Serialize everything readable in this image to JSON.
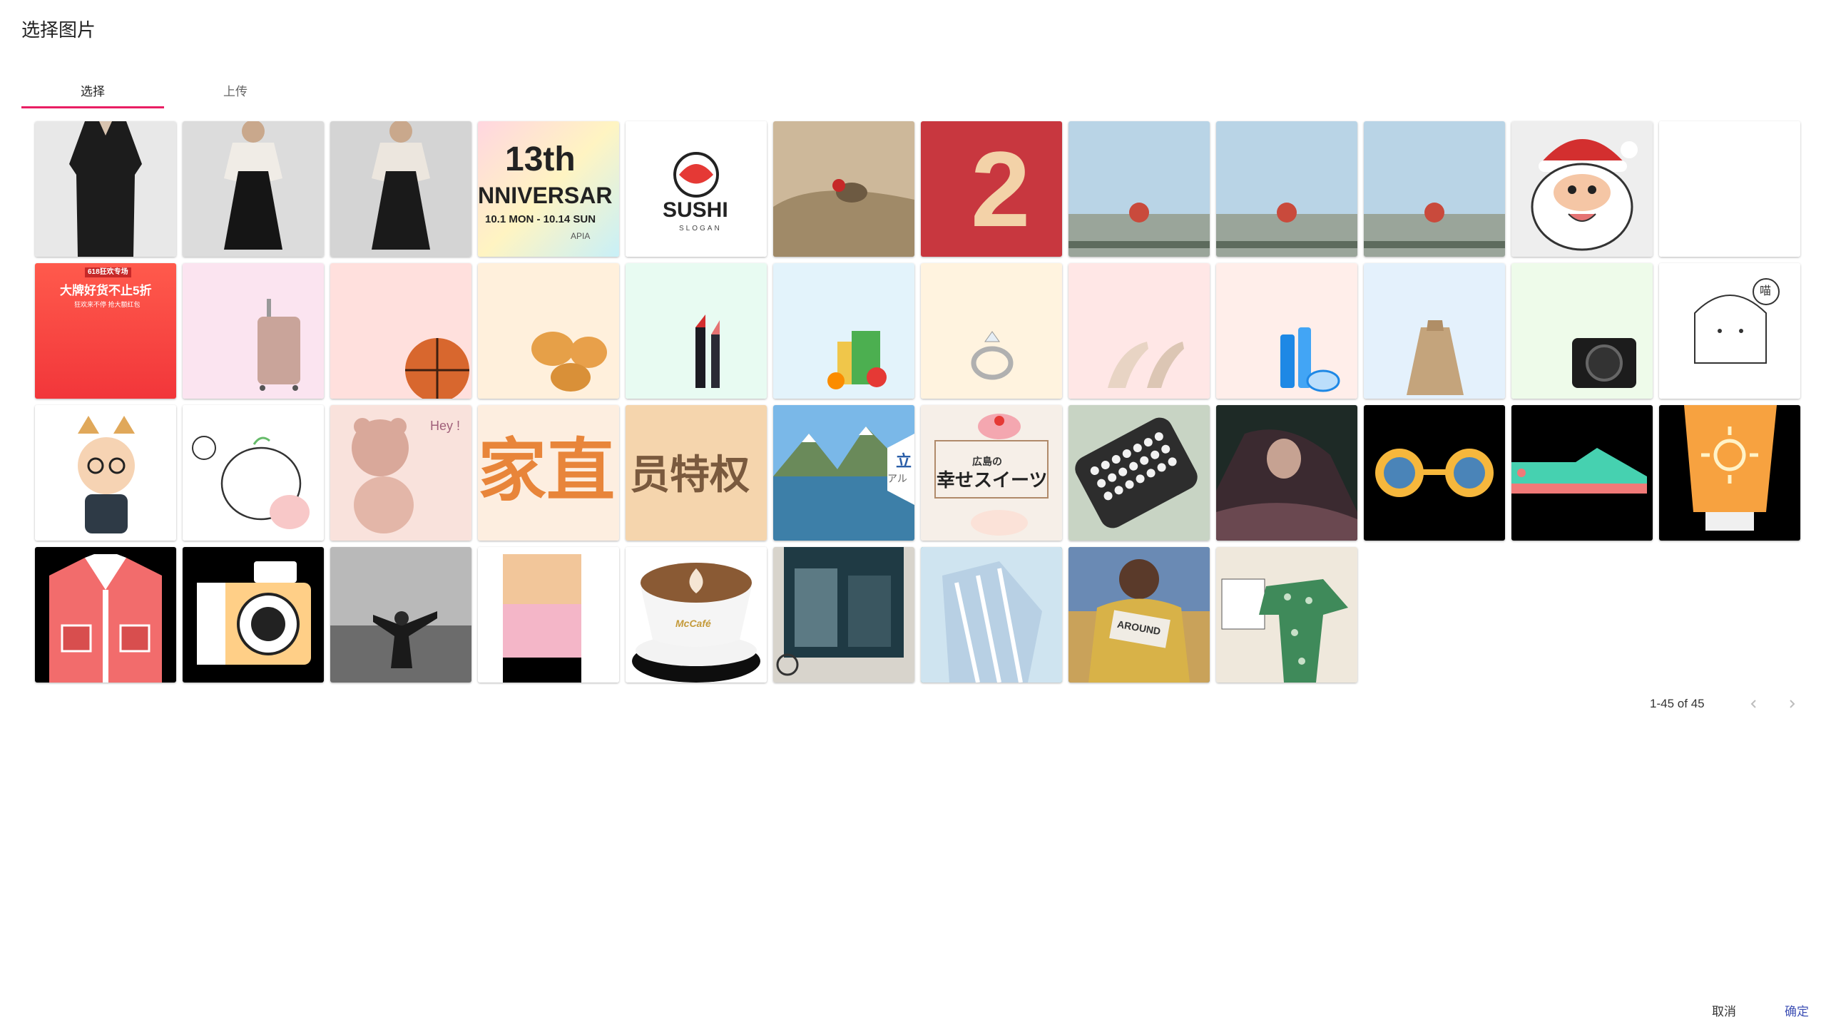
{
  "dialog": {
    "title": "选择图片"
  },
  "tabs": [
    {
      "label": "选择"
    },
    {
      "label": "上传"
    }
  ],
  "thumbs": {
    "anniversary": {
      "big": "13th",
      "mid": "NNIVERSAR",
      "date": "10.1 MON - 10.14 SUN",
      "foot": "APIA"
    },
    "sushi": {
      "word": "SUSHI",
      "sub": "SLOGAN"
    },
    "red_banner": {
      "text": "2"
    },
    "promo": {
      "head": "618狂欢专场",
      "main": "大牌好货不止5折",
      "sub": "狂欢来不停 抢大额红包"
    },
    "cartoon_girl": {
      "bubble": "喵"
    },
    "bear": {
      "text": "Hey !"
    },
    "home_text": {
      "text": "家直"
    },
    "member_text": {
      "text": "员特权"
    },
    "mountain": {
      "text": "立",
      "sub": "アル"
    },
    "sweets": {
      "top": "広島の",
      "main": "幸せスイーツ"
    },
    "coffee": {
      "brand": "McCafé"
    },
    "sweater": {
      "text": "AROUND"
    }
  },
  "pagination": {
    "range": "1-45 of 45"
  },
  "actions": {
    "cancel": "取消",
    "ok": "确定"
  },
  "colors": {
    "accent_tab": "#e91e63",
    "selected": "#1aa58a",
    "ok_text": "#3f51b5"
  }
}
